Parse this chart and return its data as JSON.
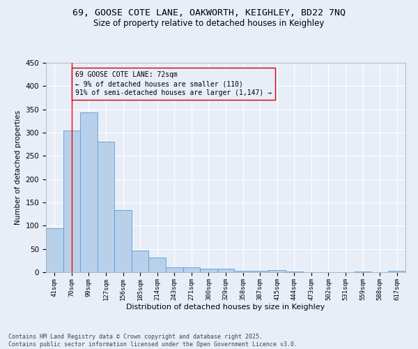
{
  "title1": "69, GOOSE COTE LANE, OAKWORTH, KEIGHLEY, BD22 7NQ",
  "title2": "Size of property relative to detached houses in Keighley",
  "xlabel": "Distribution of detached houses by size in Keighley",
  "ylabel": "Number of detached properties",
  "categories": [
    "41sqm",
    "70sqm",
    "99sqm",
    "127sqm",
    "156sqm",
    "185sqm",
    "214sqm",
    "243sqm",
    "271sqm",
    "300sqm",
    "329sqm",
    "358sqm",
    "387sqm",
    "415sqm",
    "444sqm",
    "473sqm",
    "502sqm",
    "531sqm",
    "559sqm",
    "588sqm",
    "617sqm"
  ],
  "values": [
    94,
    305,
    343,
    280,
    134,
    47,
    31,
    10,
    10,
    8,
    8,
    3,
    3,
    5,
    2,
    0,
    0,
    0,
    2,
    0,
    3
  ],
  "bar_color": "#b8d0ea",
  "bar_edge_color": "#5b9bd5",
  "bg_color": "#e8eef8",
  "grid_color": "#ffffff",
  "annotation_box_text": "69 GOOSE COTE LANE: 72sqm\n← 9% of detached houses are smaller (110)\n91% of semi-detached houses are larger (1,147) →",
  "annotation_box_color": "#cc0000",
  "vline_x_index": 1,
  "ylim": [
    0,
    450
  ],
  "yticks": [
    0,
    50,
    100,
    150,
    200,
    250,
    300,
    350,
    400,
    450
  ],
  "footnote": "Contains HM Land Registry data © Crown copyright and database right 2025.\nContains public sector information licensed under the Open Government Licence v3.0.",
  "title_fontsize": 9.5,
  "subtitle_fontsize": 8.5,
  "annot_fontsize": 7,
  "footnote_fontsize": 6,
  "ylabel_fontsize": 7.5,
  "xlabel_fontsize": 8,
  "ytick_fontsize": 7.5,
  "xtick_fontsize": 6.5
}
